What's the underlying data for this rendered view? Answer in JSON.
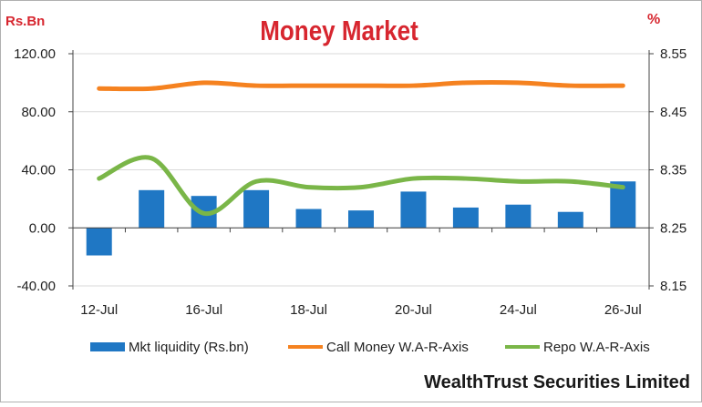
{
  "chart_data": {
    "type": "bar",
    "title": "Money Market",
    "left_unit": "Rs.Bn",
    "right_unit": "%",
    "footer": "WealthTrust Securities Limited",
    "x_labels": [
      "12-Jul",
      "",
      "16-Jul",
      "",
      "18-Jul",
      "",
      "20-Jul",
      "",
      "24-Jul",
      "",
      "26-Jul"
    ],
    "left_axis": {
      "min": -40,
      "max": 120,
      "ticks": [
        "120.00",
        "80.00",
        "40.00",
        "0.00",
        "-40.00"
      ],
      "values": [
        120,
        80,
        40,
        0,
        -40
      ]
    },
    "right_axis": {
      "min": 8.15,
      "max": 8.55,
      "ticks": [
        "8.55",
        "8.45",
        "8.35",
        "8.25",
        "8.15"
      ],
      "values": [
        8.55,
        8.45,
        8.35,
        8.25,
        8.15
      ]
    },
    "grid": true,
    "legend_position": "bottom",
    "series": [
      {
        "name": "Mkt liquidity (Rs.bn)",
        "kind": "bar",
        "axis": "left",
        "color": "#1f77c4",
        "values": [
          -19,
          26,
          22,
          26,
          13,
          12,
          25,
          14,
          16,
          11,
          32
        ]
      },
      {
        "name": "Call Money W.A-R-Axis",
        "kind": "line",
        "axis": "right",
        "color": "#f58220",
        "values": [
          8.49,
          8.49,
          8.5,
          8.495,
          8.495,
          8.495,
          8.495,
          8.5,
          8.5,
          8.495,
          8.495
        ]
      },
      {
        "name": "Repo W.A-R-Axis",
        "kind": "line",
        "axis": "right",
        "color": "#7ab648",
        "values": [
          8.335,
          8.37,
          8.275,
          8.33,
          8.32,
          8.32,
          8.335,
          8.335,
          8.33,
          8.33,
          8.32
        ]
      }
    ]
  }
}
